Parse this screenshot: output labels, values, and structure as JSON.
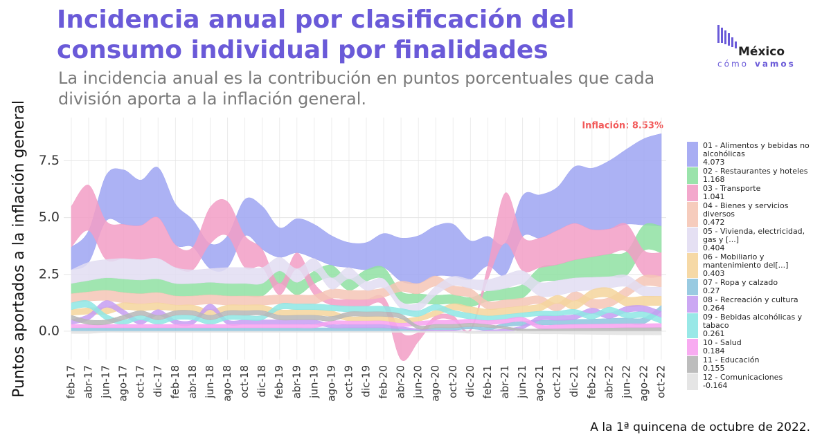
{
  "chart_data": {
    "type": "ranked-stream",
    "title": [
      "Incidencia anual por clasificación del",
      "consumo individual por finalidades"
    ],
    "subtitle": [
      "La incidencia anual es la contribución en puntos porcentuales que cada",
      "división aporta a la inflación general."
    ],
    "y_label": "Puntos aportados a la inflación general",
    "annotation": "Inflación: 8.53%",
    "caption": "A la 1ª quincena de octubre de 2022.",
    "logo": {
      "name": "México",
      "tagline": "cómo",
      "tagline_bold": "vamos"
    },
    "categories": [
      "feb-17",
      "abr-17",
      "jun-17",
      "ago-17",
      "oct-17",
      "dic-17",
      "feb-18",
      "abr-18",
      "jun-18",
      "ago-18",
      "oct-18",
      "dic-18",
      "feb-19",
      "abr-19",
      "jun-19",
      "ago-19",
      "oct-19",
      "dic-19",
      "feb-20",
      "abr-20",
      "jun-20",
      "ago-20",
      "oct-20",
      "dic-20",
      "feb-21",
      "abr-21",
      "jun-21",
      "ago-21",
      "oct-21",
      "dic-21",
      "feb-22",
      "abr-22",
      "jun-22",
      "ago-22",
      "oct-22"
    ],
    "ylim": [
      -1.25,
      9.4
    ],
    "yticks": [
      {
        "value": 0,
        "label": "0.0"
      },
      {
        "value": 2.5,
        "label": "2.5"
      },
      {
        "value": 5,
        "label": "5.0"
      },
      {
        "value": 7.5,
        "label": "7.5"
      }
    ],
    "grid": true,
    "legend": "right",
    "series": [
      {
        "name": "01 - Alimentos y bebidas no alcohólicas",
        "color": "#9ea4f2",
        "values": [
          1.0,
          1.4,
          2.0,
          2.4,
          2.0,
          2.2,
          1.8,
          1.2,
          1.1,
          1.4,
          1.6,
          1.9,
          1.3,
          1.5,
          1.5,
          1.3,
          1.1,
          1.2,
          1.5,
          1.9,
          2.1,
          2.2,
          2.3,
          1.7,
          1.3,
          1.4,
          1.8,
          1.9,
          1.9,
          2.5,
          2.7,
          3.0,
          3.3,
          3.8,
          4.073
        ]
      },
      {
        "name": "02 - Restaurantes y hoteles",
        "color": "#8fe0a2",
        "values": [
          0.45,
          0.5,
          0.55,
          0.6,
          0.6,
          0.6,
          0.55,
          0.55,
          0.55,
          0.55,
          0.55,
          0.55,
          0.55,
          0.55,
          0.55,
          0.55,
          0.5,
          0.5,
          0.5,
          0.45,
          0.4,
          0.4,
          0.4,
          0.4,
          0.45,
          0.5,
          0.6,
          0.65,
          0.7,
          0.8,
          0.9,
          1.0,
          1.05,
          1.12,
          1.168
        ]
      },
      {
        "name": "03 - Transporte",
        "color": "#f29ec6",
        "values": [
          1.8,
          2.0,
          1.7,
          1.5,
          1.5,
          1.8,
          1.0,
          1.0,
          1.6,
          1.5,
          1.4,
          0.8,
          0.5,
          0.7,
          0.5,
          0.3,
          0.3,
          0.3,
          0.4,
          -1.2,
          -0.4,
          0.2,
          0.2,
          0.1,
          0.6,
          2.2,
          1.5,
          1.3,
          1.5,
          1.6,
          1.2,
          1.1,
          1.2,
          1.1,
          1.041
        ]
      },
      {
        "name": "04 - Bienes y servicios diversos",
        "color": "#f5c6b6",
        "values": [
          0.4,
          0.4,
          0.45,
          0.45,
          0.45,
          0.45,
          0.4,
          0.4,
          0.4,
          0.4,
          0.4,
          0.4,
          0.4,
          0.4,
          0.4,
          0.4,
          0.4,
          0.4,
          0.4,
          0.45,
          0.45,
          0.45,
          0.4,
          0.4,
          0.35,
          0.35,
          0.35,
          0.35,
          0.35,
          0.4,
          0.4,
          0.42,
          0.45,
          0.46,
          0.472
        ]
      },
      {
        "name": "05 - Vivienda, electricidad, gas y [...]",
        "color": "#e2ddf2",
        "values": [
          0.6,
          0.8,
          0.8,
          0.9,
          0.9,
          0.9,
          0.7,
          0.6,
          0.6,
          0.7,
          0.7,
          0.7,
          0.6,
          0.6,
          0.55,
          0.5,
          0.5,
          0.4,
          0.4,
          0.3,
          0.35,
          0.4,
          0.4,
          0.4,
          0.5,
          0.6,
          0.6,
          0.6,
          0.65,
          0.6,
          0.55,
          0.5,
          0.5,
          0.45,
          0.404
        ]
      },
      {
        "name": "06 - Mobiliario y mantenimiento del[...]",
        "color": "#f5d59c",
        "values": [
          0.25,
          0.28,
          0.3,
          0.3,
          0.3,
          0.3,
          0.25,
          0.25,
          0.25,
          0.25,
          0.25,
          0.25,
          0.25,
          0.25,
          0.25,
          0.25,
          0.2,
          0.2,
          0.2,
          0.2,
          0.22,
          0.25,
          0.28,
          0.3,
          0.3,
          0.3,
          0.3,
          0.32,
          0.35,
          0.38,
          0.4,
          0.42,
          0.42,
          0.42,
          0.403
        ]
      },
      {
        "name": "07 - Ropa y calzado",
        "color": "#8ec4de",
        "values": [
          0.15,
          0.15,
          0.15,
          0.15,
          0.15,
          0.15,
          0.15,
          0.15,
          0.15,
          0.15,
          0.15,
          0.15,
          0.15,
          0.15,
          0.15,
          0.15,
          0.15,
          0.15,
          0.15,
          0.1,
          0.05,
          0.1,
          0.1,
          0.1,
          0.12,
          0.15,
          0.18,
          0.2,
          0.2,
          0.22,
          0.22,
          0.24,
          0.25,
          0.26,
          0.27
        ]
      },
      {
        "name": "08 - Recreación y cultura",
        "color": "#c59ef2",
        "values": [
          0.2,
          0.25,
          0.3,
          0.25,
          0.2,
          0.25,
          0.2,
          0.2,
          0.25,
          0.2,
          0.2,
          0.2,
          0.2,
          0.2,
          0.2,
          0.15,
          0.15,
          0.15,
          0.15,
          0.1,
          0.05,
          0.05,
          0.05,
          0.0,
          0.05,
          0.1,
          0.15,
          0.2,
          0.2,
          0.22,
          0.25,
          0.25,
          0.26,
          0.27,
          0.264
        ]
      },
      {
        "name": "09 - Bebidas alcohólicas y tabaco",
        "color": "#8ee6e4",
        "values": [
          0.3,
          0.3,
          0.25,
          0.2,
          0.2,
          0.2,
          0.2,
          0.2,
          0.2,
          0.2,
          0.2,
          0.2,
          0.25,
          0.25,
          0.25,
          0.25,
          0.25,
          0.25,
          0.25,
          0.25,
          0.25,
          0.25,
          0.25,
          0.25,
          0.2,
          0.2,
          0.2,
          0.2,
          0.2,
          0.22,
          0.24,
          0.25,
          0.25,
          0.26,
          0.261
        ]
      },
      {
        "name": "10 - Salud",
        "color": "#f7a2f0",
        "values": [
          0.15,
          0.15,
          0.15,
          0.15,
          0.15,
          0.15,
          0.15,
          0.15,
          0.15,
          0.15,
          0.15,
          0.15,
          0.15,
          0.15,
          0.15,
          0.15,
          0.15,
          0.15,
          0.15,
          0.15,
          0.18,
          0.18,
          0.18,
          0.18,
          0.18,
          0.18,
          0.18,
          0.18,
          0.18,
          0.18,
          0.18,
          0.18,
          0.18,
          0.18,
          0.184
        ]
      },
      {
        "name": "11 - Educación",
        "color": "#b6b6b6",
        "values": [
          0.2,
          0.2,
          0.2,
          0.2,
          0.2,
          0.2,
          0.2,
          0.2,
          0.2,
          0.2,
          0.2,
          0.2,
          0.2,
          0.2,
          0.2,
          0.2,
          0.2,
          0.2,
          0.2,
          0.2,
          0.15,
          0.15,
          0.15,
          0.15,
          0.12,
          0.1,
          0.1,
          0.1,
          0.1,
          0.12,
          0.13,
          0.14,
          0.15,
          0.15,
          0.155
        ]
      },
      {
        "name": "12 - Comunicaciones",
        "color": "#e2e2e2",
        "values": [
          -0.1,
          -0.1,
          -0.05,
          -0.05,
          -0.05,
          -0.05,
          -0.05,
          -0.05,
          -0.05,
          -0.05,
          -0.05,
          -0.05,
          -0.05,
          -0.05,
          -0.05,
          -0.05,
          -0.05,
          -0.05,
          -0.05,
          -0.05,
          -0.05,
          -0.05,
          -0.05,
          -0.1,
          -0.1,
          -0.1,
          -0.1,
          -0.12,
          -0.12,
          -0.13,
          -0.14,
          -0.15,
          -0.16,
          -0.16,
          -0.164
        ]
      }
    ]
  }
}
